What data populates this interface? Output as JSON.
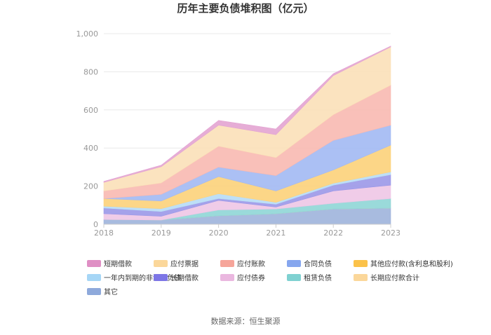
{
  "chart_data": {
    "type": "area",
    "stacked": true,
    "title": "历年主要负债堆积图（亿元）",
    "x": [
      "2018",
      "2019",
      "2020",
      "2021",
      "2022",
      "2023"
    ],
    "ylim": [
      0,
      1000
    ],
    "yticks": [
      "0",
      "200",
      "400",
      "600",
      "800",
      "1,000"
    ],
    "grid": true,
    "legend_position": "bottom",
    "series": [
      {
        "name": "其它",
        "color": "#9fb4dc",
        "values": [
          25,
          22,
          45,
          55,
          80,
          85
        ]
      },
      {
        "name": "长期应付款合计",
        "color": "#fbd9a3",
        "values": [
          0,
          0,
          0,
          0,
          0,
          0
        ]
      },
      {
        "name": "租赁负债",
        "color": "#8fd6d6",
        "values": [
          0,
          0,
          30,
          25,
          30,
          50
        ]
      },
      {
        "name": "应付债券",
        "color": "#eec6e6",
        "values": [
          30,
          20,
          50,
          10,
          65,
          70
        ]
      },
      {
        "name": "长期借款",
        "color": "#9b98e8",
        "values": [
          30,
          25,
          10,
          15,
          30,
          55
        ]
      },
      {
        "name": "一年内到期的非流动负债",
        "color": "#b7dcf6",
        "values": [
          10,
          15,
          25,
          10,
          10,
          15
        ]
      },
      {
        "name": "其他应付款(含利息和股利)",
        "color": "#fcd27a",
        "values": [
          40,
          40,
          90,
          60,
          70,
          140
        ]
      },
      {
        "name": "合同负债",
        "color": "#a2b9f3",
        "values": [
          0,
          35,
          50,
          80,
          155,
          105
        ]
      },
      {
        "name": "应付账款",
        "color": "#f8b9b1",
        "values": [
          40,
          60,
          110,
          95,
          135,
          210
        ]
      },
      {
        "name": "应付票据",
        "color": "#fbe0b8",
        "values": [
          45,
          85,
          110,
          120,
          205,
          200
        ]
      },
      {
        "name": "短期借款",
        "color": "#e3a4d2",
        "values": [
          5,
          8,
          25,
          30,
          10,
          5
        ]
      }
    ],
    "legend_order": [
      "短期借款",
      "应付票据",
      "应付账款",
      "合同负债",
      "其他应付款(含利息和股利)",
      "一年内到期的非流动负债",
      "长期借款",
      "应付债券",
      "租赁负债",
      "长期应付款合计",
      "其它"
    ],
    "legend_swatch_colors": {
      "短期借款": "#df8fc4",
      "应付票据": "#fbd79a",
      "应付账款": "#f6a59a",
      "合同负债": "#86a6ee",
      "其他应付款(含利息和股利)": "#fbc24a",
      "一年内到期的非流动负债": "#a6d6f6",
      "长期借款": "#7d76e6",
      "应付债券": "#eab7df",
      "租赁负债": "#7fd1d1",
      "长期应付款合计": "#fbd79a",
      "其它": "#8ea9db"
    }
  },
  "source_text": "数据来源：恒生聚源"
}
